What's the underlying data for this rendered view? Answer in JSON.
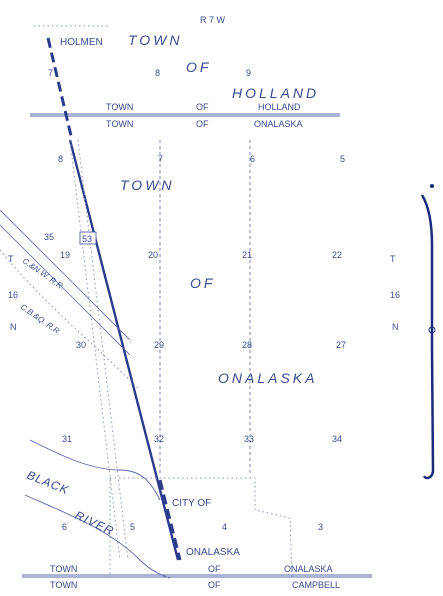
{
  "map": {
    "range_label": "R 7 W",
    "section_numbers": {
      "s7_a": "7",
      "s8_a": "8",
      "s9_a": "9",
      "s8_b": "8",
      "s7_b": "7",
      "s6": "6",
      "s5_a": "5",
      "s35": "35",
      "s19": "19",
      "s20": "20",
      "s21": "21",
      "s22": "22",
      "s30": "30",
      "s29": "29",
      "s28": "28",
      "s27": "27",
      "s31": "31",
      "s32": "32",
      "s33": "33",
      "s34": "34",
      "s5_b": "5",
      "s4": "4",
      "s3": "3",
      "s6_b": "6"
    },
    "labels": {
      "holmen": "HOLMEN",
      "town_of_holland_1": "TOWN",
      "town_of_holland_2": "OF",
      "town_of_holland_3": "HOLLAND",
      "town_line_upper_left": "TOWN",
      "town_line_upper_of": "OF",
      "town_line_upper_holland": "HOLLAND",
      "town_line_lower_left": "TOWN",
      "town_line_lower_of": "OF",
      "town_line_lower_onalaska": "ONALASKA",
      "town_of_onalaska_1": "TOWN",
      "town_of_onalaska_2": "OF",
      "town_of_onalaska_3": "ONALASKA",
      "highway_53": "53",
      "rr_1": "C.&N.W. R.R.",
      "rr_2": "C.B.&Q. R.R.",
      "left_t": "T",
      "left_16": "16",
      "left_n": "N",
      "right_t": "T",
      "right_16": "16",
      "right_n": "N",
      "black_river_1": "BLACK",
      "black_river_2": "RIVER",
      "city_of": "CITY OF",
      "city_onalaska": "ONALASKA",
      "bottom_town_1": "TOWN",
      "bottom_of_1": "OF",
      "bottom_onalaska": "ONALASKA",
      "bottom_town_2": "TOWN",
      "bottom_of_2": "OF",
      "bottom_campbell": "CAMPBELL"
    }
  }
}
